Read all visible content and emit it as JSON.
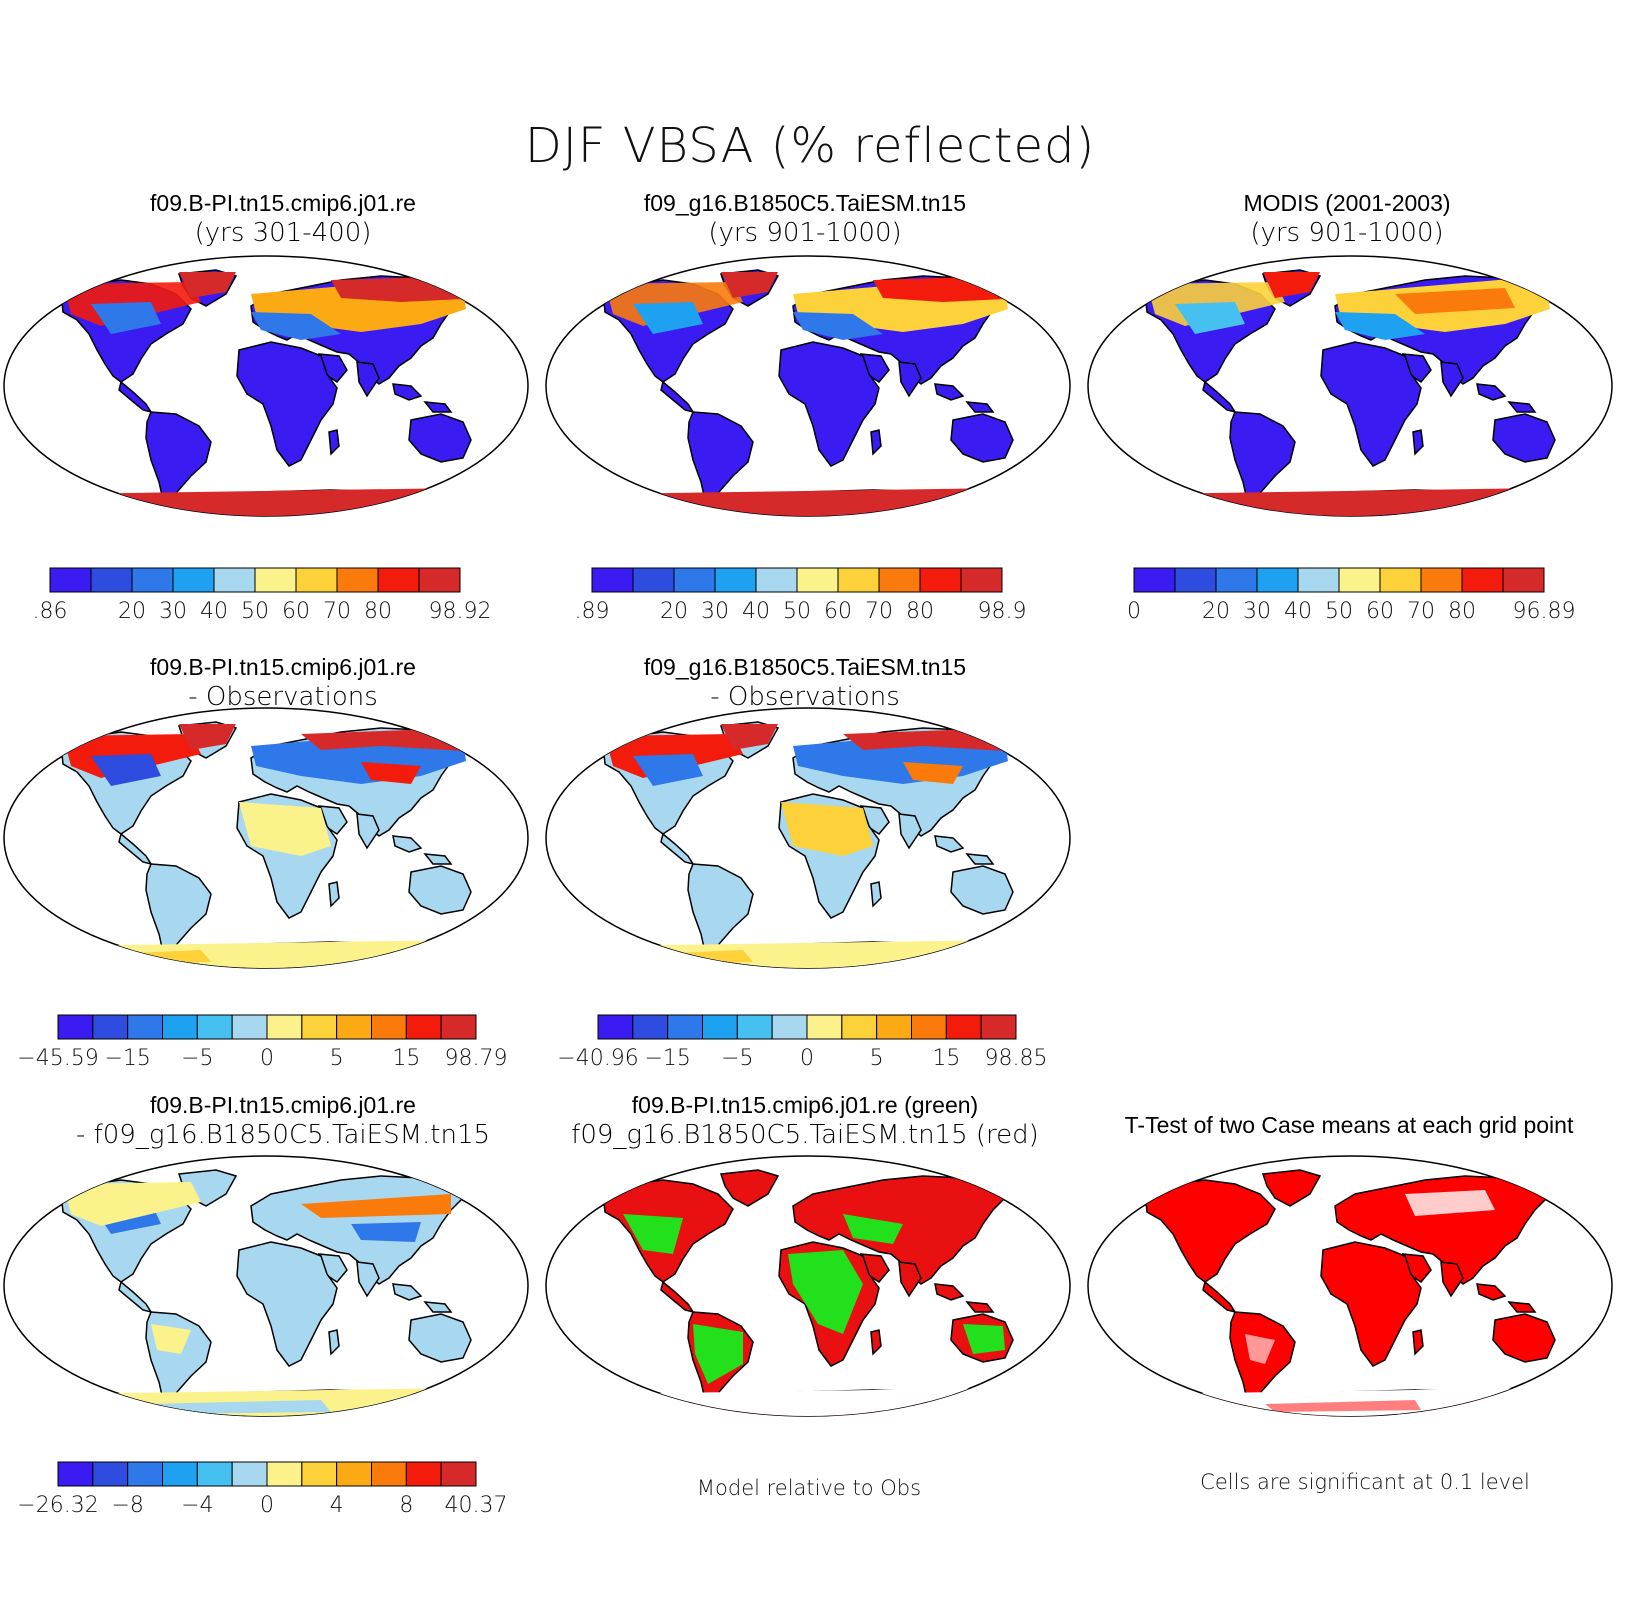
{
  "title": "DJF VBSA (% reflected)",
  "colors": {
    "scale": [
      "#3a1bf2",
      "#2e4de0",
      "#2f78ea",
      "#1da1f0",
      "#45c0f0",
      "#a8d8f0",
      "#fbf28c",
      "#fcd13a",
      "#fbaa14",
      "#fa7b0c",
      "#f21b0c",
      "#d62a2a"
    ],
    "land_outline": "#000000",
    "significance_red": "#ff0000",
    "model1_green": "#22e01c",
    "model2_red": "#e81010"
  },
  "panels": [
    {
      "id": "p1",
      "line1": "f09.B-PI.tn15.cmip6.j01.re",
      "line2": "(yrs 301-400)",
      "palette": "abs_low",
      "colorbar": {
        "labels": [
          ".86",
          "20",
          "30",
          "40",
          "50",
          "60",
          "70",
          "80",
          "98.92"
        ]
      }
    },
    {
      "id": "p2",
      "line1": "f09_g16.B1850C5.TaiESM.tn15",
      "line2": "(yrs 901-1000)",
      "palette": "abs_low",
      "colorbar": {
        "labels": [
          ".89",
          "20",
          "30",
          "40",
          "50",
          "60",
          "70",
          "80",
          "98.9"
        ]
      }
    },
    {
      "id": "p3",
      "line1": "MODIS (2001-2003)",
      "line2": "(yrs 901-1000)",
      "palette": "abs_obs",
      "colorbar": {
        "labels": [
          "0",
          "20",
          "30",
          "40",
          "50",
          "60",
          "70",
          "80",
          "96.89"
        ]
      }
    },
    {
      "id": "p4",
      "line1": "f09.B-PI.tn15.cmip6.j01.re",
      "line2": "- Observations",
      "palette": "diff",
      "colorbar": {
        "labels": [
          "-45.59",
          "-15",
          "-5",
          "0",
          "5",
          "15",
          "98.79"
        ]
      }
    },
    {
      "id": "p5",
      "line1": "f09_g16.B1850C5.TaiESM.tn15",
      "line2": "- Observations",
      "palette": "diff",
      "colorbar": {
        "labels": [
          "-40.96",
          "-15",
          "-5",
          "0",
          "5",
          "15",
          "98.85"
        ]
      }
    },
    {
      "id": "p7",
      "line1": "f09.B-PI.tn15.cmip6.j01.re",
      "line2": "- f09_g16.B1850C5.TaiESM.tn15",
      "palette": "diff_small",
      "colorbar": {
        "labels": [
          "-26.32",
          "-8",
          "-4",
          "0",
          "4",
          "8",
          "40.37"
        ]
      }
    },
    {
      "id": "p8",
      "line1": "f09.B-PI.tn15.cmip6.j01.re (green)",
      "line2": "f09_g16.B1850C5.TaiESM.tn15 (red)",
      "palette": "greenred",
      "caption": "Model relative to Obs"
    },
    {
      "id": "p9",
      "line1": "T-Test of two Case means at each grid point",
      "line2": "",
      "palette": "ttest",
      "caption": "Cells are significant at 0.1 level"
    }
  ]
}
